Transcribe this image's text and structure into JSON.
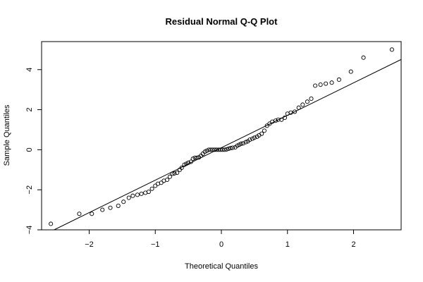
{
  "chart_data": {
    "type": "scatter",
    "title": "Residual Normal Q-Q Plot",
    "xlabel": "Theoretical Quantiles",
    "ylabel": "Sample Quantiles",
    "xlim": [
      -2.72,
      2.72
    ],
    "ylim": [
      -4.0,
      5.4
    ],
    "x_ticks": [
      -2,
      -1,
      0,
      1,
      2
    ],
    "y_ticks": [
      -4,
      -2,
      0,
      2,
      4
    ],
    "grid": false,
    "legend": "none",
    "marker": "open-circle",
    "reference_line": {
      "slope": 1.62,
      "intercept": 0.1
    },
    "points": [
      [
        -2.58,
        -3.7
      ],
      [
        -2.15,
        -3.2
      ],
      [
        -1.96,
        -3.2
      ],
      [
        -1.8,
        -3.0
      ],
      [
        -1.68,
        -2.9
      ],
      [
        -1.56,
        -2.8
      ],
      [
        -1.48,
        -2.6
      ],
      [
        -1.4,
        -2.4
      ],
      [
        -1.34,
        -2.3
      ],
      [
        -1.27,
        -2.25
      ],
      [
        -1.21,
        -2.2
      ],
      [
        -1.15,
        -2.15
      ],
      [
        -1.1,
        -2.1
      ],
      [
        -1.05,
        -1.95
      ],
      [
        -1.0,
        -1.8
      ],
      [
        -0.96,
        -1.7
      ],
      [
        -0.91,
        -1.65
      ],
      [
        -0.87,
        -1.55
      ],
      [
        -0.82,
        -1.5
      ],
      [
        -0.78,
        -1.35
      ],
      [
        -0.74,
        -1.2
      ],
      [
        -0.71,
        -1.18
      ],
      [
        -0.67,
        -1.15
      ],
      [
        -0.63,
        -1.0
      ],
      [
        -0.6,
        -0.9
      ],
      [
        -0.56,
        -0.75
      ],
      [
        -0.53,
        -0.7
      ],
      [
        -0.5,
        -0.65
      ],
      [
        -0.46,
        -0.6
      ],
      [
        -0.43,
        -0.45
      ],
      [
        -0.4,
        -0.4
      ],
      [
        -0.37,
        -0.4
      ],
      [
        -0.34,
        -0.38
      ],
      [
        -0.31,
        -0.3
      ],
      [
        -0.28,
        -0.2
      ],
      [
        -0.25,
        -0.1
      ],
      [
        -0.22,
        -0.05
      ],
      [
        -0.19,
        0.0
      ],
      [
        -0.16,
        0.0
      ],
      [
        -0.13,
        0.0
      ],
      [
        -0.1,
        0.0
      ],
      [
        -0.07,
        0.0
      ],
      [
        -0.04,
        0.0
      ],
      [
        -0.01,
        0.0
      ],
      [
        0.02,
        0.0
      ],
      [
        0.05,
        0.0
      ],
      [
        0.08,
        0.02
      ],
      [
        0.11,
        0.05
      ],
      [
        0.14,
        0.08
      ],
      [
        0.17,
        0.1
      ],
      [
        0.21,
        0.12
      ],
      [
        0.24,
        0.2
      ],
      [
        0.27,
        0.25
      ],
      [
        0.3,
        0.3
      ],
      [
        0.33,
        0.32
      ],
      [
        0.37,
        0.38
      ],
      [
        0.4,
        0.42
      ],
      [
        0.43,
        0.5
      ],
      [
        0.47,
        0.55
      ],
      [
        0.5,
        0.6
      ],
      [
        0.54,
        0.65
      ],
      [
        0.57,
        0.72
      ],
      [
        0.61,
        0.8
      ],
      [
        0.65,
        0.95
      ],
      [
        0.69,
        1.2
      ],
      [
        0.73,
        1.3
      ],
      [
        0.77,
        1.4
      ],
      [
        0.82,
        1.45
      ],
      [
        0.86,
        1.5
      ],
      [
        0.91,
        1.5
      ],
      [
        0.96,
        1.6
      ],
      [
        1.0,
        1.8
      ],
      [
        1.05,
        1.85
      ],
      [
        1.11,
        1.9
      ],
      [
        1.17,
        2.1
      ],
      [
        1.23,
        2.25
      ],
      [
        1.3,
        2.4
      ],
      [
        1.36,
        2.55
      ],
      [
        1.42,
        3.2
      ],
      [
        1.5,
        3.25
      ],
      [
        1.58,
        3.3
      ],
      [
        1.67,
        3.35
      ],
      [
        1.78,
        3.5
      ],
      [
        1.96,
        3.9
      ],
      [
        2.15,
        4.6
      ],
      [
        2.58,
        5.0
      ]
    ]
  }
}
